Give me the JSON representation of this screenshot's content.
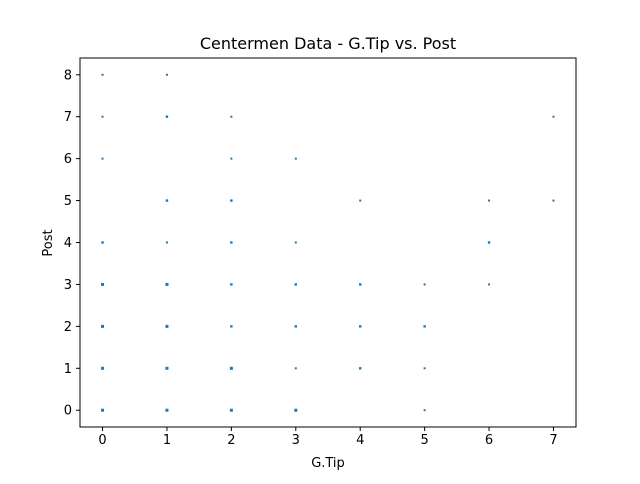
{
  "chart_data": {
    "type": "scatter",
    "title": "Centermen Data - G.Tip vs. Post",
    "xlabel": "G.Tip",
    "ylabel": "Post",
    "xlim": [
      -0.35,
      7.35
    ],
    "ylim": [
      -0.4,
      8.4
    ],
    "xticks": [
      0,
      1,
      2,
      3,
      4,
      5,
      6,
      7
    ],
    "yticks": [
      0,
      1,
      2,
      3,
      4,
      5,
      6,
      7,
      8
    ],
    "grid": false,
    "legend": "none",
    "marker_color": "#1f77b4",
    "series": [
      {
        "points": [
          {
            "x": 0,
            "y": 8,
            "w": 1
          },
          {
            "x": 1,
            "y": 8,
            "w": 1
          },
          {
            "x": 0,
            "y": 7,
            "w": 1
          },
          {
            "x": 1,
            "y": 7,
            "w": 2
          },
          {
            "x": 2,
            "y": 7,
            "w": 1
          },
          {
            "x": 7,
            "y": 7,
            "w": 1
          },
          {
            "x": 0,
            "y": 6,
            "w": 1
          },
          {
            "x": 2,
            "y": 6,
            "w": 1
          },
          {
            "x": 3,
            "y": 6,
            "w": 1
          },
          {
            "x": 1,
            "y": 5,
            "w": 2
          },
          {
            "x": 2,
            "y": 5,
            "w": 2
          },
          {
            "x": 4,
            "y": 5,
            "w": 1
          },
          {
            "x": 6,
            "y": 5,
            "w": 1
          },
          {
            "x": 7,
            "y": 5,
            "w": 1
          },
          {
            "x": 0,
            "y": 4,
            "w": 2
          },
          {
            "x": 1,
            "y": 4,
            "w": 1
          },
          {
            "x": 2,
            "y": 4,
            "w": 2
          },
          {
            "x": 3,
            "y": 4,
            "w": 1
          },
          {
            "x": 6,
            "y": 4,
            "w": 2
          },
          {
            "x": 0,
            "y": 3,
            "w": 3
          },
          {
            "x": 1,
            "y": 3,
            "w": 3
          },
          {
            "x": 2,
            "y": 3,
            "w": 2
          },
          {
            "x": 3,
            "y": 3,
            "w": 2
          },
          {
            "x": 4,
            "y": 3,
            "w": 2
          },
          {
            "x": 5,
            "y": 3,
            "w": 1
          },
          {
            "x": 6,
            "y": 3,
            "w": 1
          },
          {
            "x": 0,
            "y": 2,
            "w": 3
          },
          {
            "x": 1,
            "y": 2,
            "w": 3
          },
          {
            "x": 2,
            "y": 2,
            "w": 2
          },
          {
            "x": 3,
            "y": 2,
            "w": 2
          },
          {
            "x": 4,
            "y": 2,
            "w": 2
          },
          {
            "x": 5,
            "y": 2,
            "w": 2
          },
          {
            "x": 0,
            "y": 1,
            "w": 3
          },
          {
            "x": 1,
            "y": 1,
            "w": 3
          },
          {
            "x": 2,
            "y": 1,
            "w": 3
          },
          {
            "x": 3,
            "y": 1,
            "w": 1
          },
          {
            "x": 4,
            "y": 1,
            "w": 2
          },
          {
            "x": 5,
            "y": 1,
            "w": 1
          },
          {
            "x": 0,
            "y": 0,
            "w": 3
          },
          {
            "x": 1,
            "y": 0,
            "w": 3
          },
          {
            "x": 2,
            "y": 0,
            "w": 3
          },
          {
            "x": 3,
            "y": 0,
            "w": 3
          },
          {
            "x": 5,
            "y": 0,
            "w": 1
          }
        ]
      }
    ]
  }
}
